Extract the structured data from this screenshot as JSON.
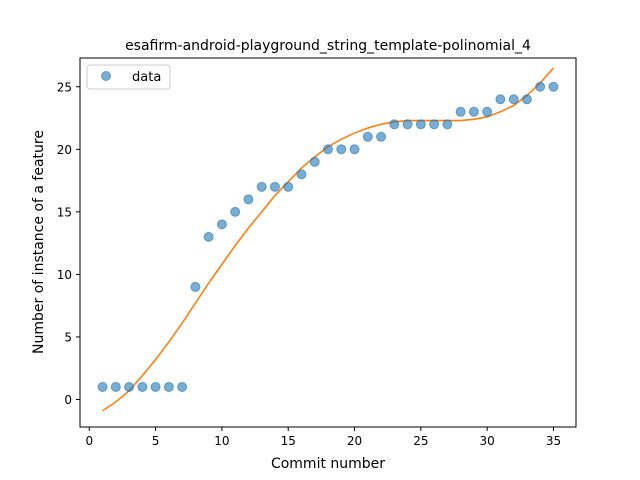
{
  "chart_data": {
    "type": "scatter",
    "title": "esafirm-android-playground_string_template-polinomial_4",
    "xlabel": "Commit number",
    "ylabel": "Number of instance of a feature",
    "xlim": [
      -0.7,
      36.7
    ],
    "ylim": [
      -2.2,
      27.3
    ],
    "xticks": [
      0,
      5,
      10,
      15,
      20,
      25,
      30,
      35
    ],
    "yticks": [
      0,
      5,
      10,
      15,
      20,
      25
    ],
    "legend_position": "top-left",
    "series": [
      {
        "name": "data",
        "kind": "markers",
        "color": "#1f77b4",
        "x": [
          1,
          2,
          3,
          4,
          5,
          6,
          7,
          8,
          9,
          10,
          11,
          12,
          13,
          14,
          15,
          16,
          17,
          18,
          19,
          20,
          21,
          22,
          23,
          24,
          25,
          26,
          27,
          28,
          29,
          30,
          31,
          32,
          33,
          34,
          35
        ],
        "y": [
          1,
          1,
          1,
          1,
          1,
          1,
          1,
          9,
          13,
          14,
          15,
          16,
          17,
          17,
          17,
          18,
          19,
          20,
          20,
          20,
          21,
          21,
          22,
          22,
          22,
          22,
          22,
          23,
          23,
          23,
          24,
          24,
          24,
          25,
          25
        ]
      },
      {
        "name": "",
        "kind": "line",
        "color": "#ff7f0e",
        "x": [
          1,
          2,
          3,
          4,
          5,
          6,
          7,
          8,
          9,
          10,
          11,
          12,
          13,
          14,
          15,
          16,
          17,
          18,
          19,
          20,
          21,
          22,
          23,
          24,
          25,
          26,
          27,
          28,
          29,
          30,
          31,
          32,
          33,
          34,
          35
        ],
        "y": [
          -0.9,
          -0.2,
          0.7,
          1.9,
          3.2,
          4.6,
          6.1,
          7.7,
          9.3,
          10.8,
          12.3,
          13.7,
          15.0,
          16.3,
          17.4,
          18.5,
          19.4,
          20.2,
          20.8,
          21.3,
          21.7,
          22.0,
          22.2,
          22.3,
          22.3,
          22.3,
          22.3,
          22.3,
          22.4,
          22.6,
          23.0,
          23.5,
          24.3,
          25.3,
          26.5
        ]
      }
    ]
  }
}
